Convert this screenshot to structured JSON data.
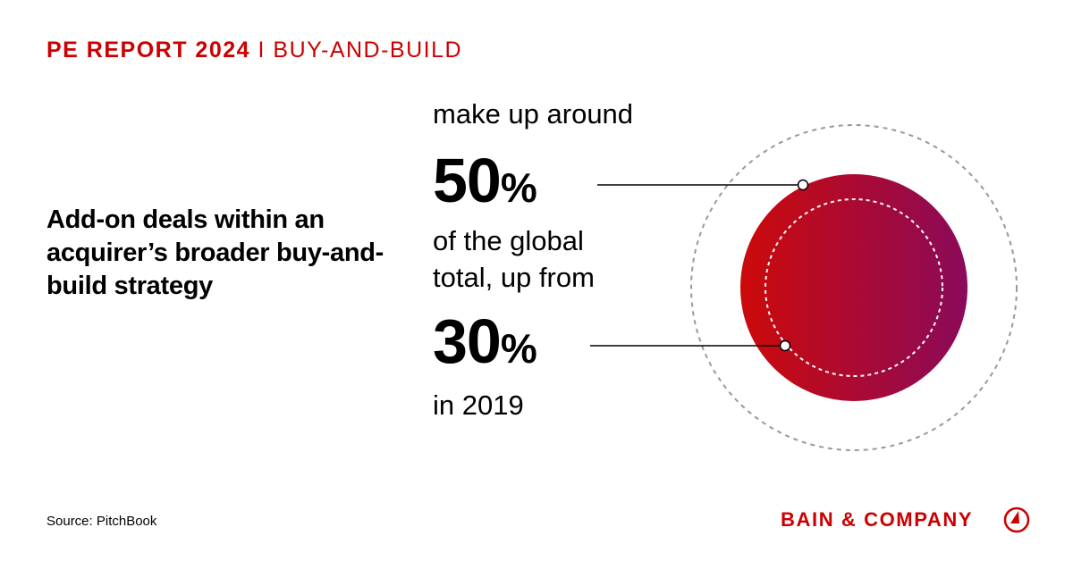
{
  "header": {
    "report": "PE REPORT 2024",
    "separator": "I",
    "topic": "BUY-AND-BUILD"
  },
  "headline": "Add-on deals within an acquirer’s broader buy-and-build strategy",
  "stat": {
    "intro": "make up around",
    "current_value": "50",
    "current_unit": "%",
    "middle_line1": "of the global",
    "middle_line2": "total, up from",
    "previous_value": "30",
    "previous_unit": "%",
    "outro": "in 2019"
  },
  "source": "Source: PitchBook",
  "brand": {
    "name": "BAIN & COMPANY",
    "logo_icon": "bain-compass-icon"
  },
  "colors": {
    "accent": "#cc0000",
    "gradient_start": "#cc0a0a",
    "gradient_end": "#8a0a5a",
    "dashed_outer": "#999999"
  }
}
